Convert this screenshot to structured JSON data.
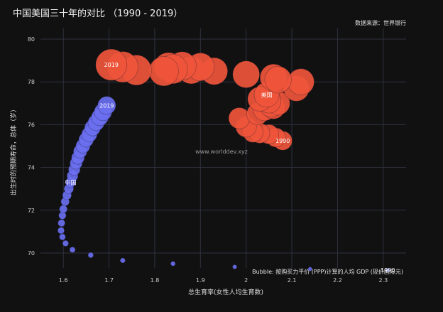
{
  "title": "中国美国三十年的对比 （1990 - 2019）",
  "source": "数据来源：世界银行",
  "watermark": "www.worlddev.xyz",
  "bubble_note": "Bubble: 按购买力平价 (PPP)计算的人均 GDP (现价国际元)",
  "chart_data": {
    "type": "scatter",
    "xlabel": "总生育率(女性人均生育数)",
    "ylabel": "出生时的预期寿命，总体（岁）",
    "xlim": [
      1.55,
      2.35
    ],
    "ylim": [
      69.3,
      80.5
    ],
    "xticks": [
      1.6,
      1.7,
      1.8,
      1.9,
      2,
      2.1,
      2.2,
      2.3
    ],
    "xtick_labels": [
      "1.6",
      "1.7",
      "1.8",
      "1.9",
      "2",
      "2.1",
      "2.2",
      "2.3"
    ],
    "yticks": [
      70,
      72,
      74,
      76,
      78,
      80
    ],
    "ytick_labels": [
      "70",
      "72",
      "74",
      "76",
      "78",
      "80"
    ],
    "grid": true,
    "size_variable": "GDP per capita, PPP (current international $)",
    "series": [
      {
        "name": "中国",
        "color": "#6a6ff0",
        "x": [
          2.31,
          2.14,
          1.975,
          1.84,
          1.73,
          1.66,
          1.62,
          1.605,
          1.598,
          1.595,
          1.596,
          1.598,
          1.6,
          1.604,
          1.608,
          1.612,
          1.616,
          1.62,
          1.624,
          1.628,
          1.632,
          1.637,
          1.643,
          1.65,
          1.657,
          1.664,
          1.672,
          1.68,
          1.687,
          1.695
        ],
        "y": [
          69.2,
          69.25,
          69.35,
          69.5,
          69.65,
          69.9,
          70.15,
          70.45,
          70.75,
          71.05,
          71.4,
          71.75,
          72.05,
          72.4,
          72.7,
          73.0,
          73.3,
          73.6,
          73.9,
          74.2,
          74.45,
          74.75,
          75.0,
          75.3,
          75.55,
          75.85,
          76.1,
          76.35,
          76.6,
          76.9
        ],
        "values": [
          980,
          1100,
          1250,
          1450,
          1680,
          1900,
          2100,
          2350,
          2620,
          2900,
          3300,
          3650,
          4050,
          4600,
          5250,
          6000,
          6900,
          8050,
          8950,
          9950,
          11100,
          12300,
          13500,
          14700,
          15800,
          16900,
          18000,
          19200,
          20600,
          21600
        ],
        "labels": [
          {
            "text": "1990",
            "index": 0
          },
          {
            "text": "中国",
            "index": 16
          },
          {
            "text": "2019",
            "index": 29
          }
        ]
      },
      {
        "name": "美国",
        "color": "#ef553b",
        "x": [
          2.08,
          2.065,
          2.05,
          2.03,
          2.015,
          2.0,
          1.985,
          2.025,
          2.04,
          2.06,
          2.055,
          2.07,
          2.05,
          2.03,
          2.045,
          2.11,
          2.12,
          2.0,
          2.06,
          2.07,
          1.93,
          1.88,
          1.9,
          1.86,
          1.83,
          1.84,
          1.82,
          1.76,
          1.73,
          1.705
        ],
        "y": [
          75.25,
          75.4,
          75.55,
          75.6,
          75.65,
          75.9,
          76.3,
          76.5,
          76.7,
          76.8,
          76.9,
          77.0,
          77.1,
          77.2,
          77.4,
          77.7,
          78.0,
          78.35,
          78.2,
          78.1,
          78.5,
          78.55,
          78.7,
          78.75,
          78.7,
          78.6,
          78.5,
          78.55,
          78.7,
          78.8
        ],
        "values": [
          23900,
          24400,
          25400,
          26400,
          27700,
          28700,
          30000,
          31400,
          32900,
          34600,
          36300,
          37100,
          38000,
          39500,
          41700,
          44100,
          46300,
          48100,
          48600,
          47200,
          48600,
          50000,
          51700,
          53100,
          55000,
          56800,
          57900,
          60100,
          63100,
          65100
        ],
        "labels": [
          {
            "text": "1990",
            "index": 0
          },
          {
            "text": "美国",
            "index": 14
          },
          {
            "text": "2019",
            "index": 29
          }
        ]
      }
    ]
  }
}
